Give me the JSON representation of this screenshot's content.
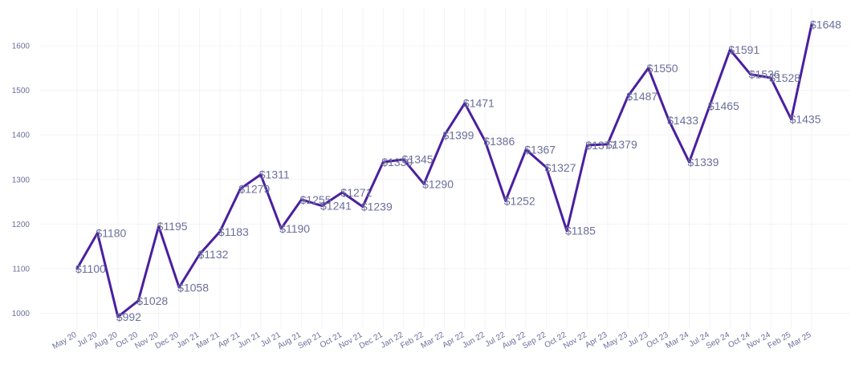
{
  "chart_data": {
    "type": "line",
    "title": "",
    "xlabel": "",
    "ylabel": "",
    "x": [
      "May 20",
      "Jul 20",
      "Aug 20",
      "Oct 20",
      "Nov 20",
      "Dec 20",
      "Jan 21",
      "Mar 21",
      "Apr 21",
      "Jun 21",
      "Jul 21",
      "Aug 21",
      "Sep 21",
      "Oct 21",
      "Nov 21",
      "Dec 21",
      "Jan 22",
      "Feb 22",
      "Mar 22",
      "Apr 22",
      "Jun 22",
      "Jul 22",
      "Aug 22",
      "Sep 22",
      "Oct 22",
      "Nov 22",
      "Apr 23",
      "May 23",
      "Jul 23",
      "Oct 23",
      "Mar 24",
      "Jul 24",
      "Sep 24",
      "Oct 24",
      "Nov 24",
      "Feb 25",
      "Mar 25"
    ],
    "series": [
      {
        "values": [
          1100,
          1180,
          992,
          1028,
          1195,
          1058,
          1132,
          1183,
          1279,
          1311,
          1190,
          1255,
          1241,
          1271,
          1239,
          1339,
          1345,
          1290,
          1399,
          1471,
          1386,
          1252,
          1367,
          1327,
          1185,
          1377,
          1379,
          1487,
          1550,
          1433,
          1339,
          1465,
          1591,
          1536,
          1528,
          1435,
          1648
        ],
        "labels": [
          "$1100",
          "$1180",
          "$992",
          "$1028",
          "$1195",
          "$1058",
          "$1132",
          "$1183",
          "$1279",
          "$1311",
          "$1190",
          "$1255",
          "$1241",
          "$1271",
          "$1239",
          "$1339",
          "$1345",
          "$1290",
          "$1399",
          "$1471",
          "$1386",
          "$1252",
          "$1367",
          "$1327",
          "$1185",
          "$1377",
          "$1379",
          "$1487",
          "$1550",
          "$1433",
          "$1339",
          "$1465",
          "$1591",
          "$1536",
          "$1528",
          "$1435",
          "$1648"
        ],
        "color": "#4a1fa0"
      }
    ],
    "yticks": [
      "1000",
      "1100",
      "1200",
      "1300",
      "1400",
      "1500",
      "1600"
    ],
    "ylim": [
      960,
      1680
    ],
    "grid": true,
    "legend": "none"
  }
}
